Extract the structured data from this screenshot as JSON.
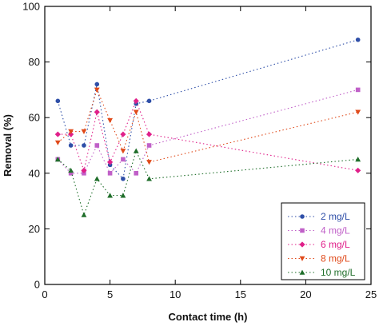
{
  "chart_data": {
    "type": "scatter",
    "title": "",
    "xlabel": "Contact time (h)",
    "ylabel": "Removal (%)",
    "xlim": [
      0,
      25
    ],
    "ylim": [
      0,
      100
    ],
    "xticks": [
      0,
      5,
      10,
      15,
      20,
      25
    ],
    "yticks": [
      0,
      20,
      40,
      60,
      80,
      100
    ],
    "grid": false,
    "line_style": "dotted",
    "legend_position": "bottom-right",
    "x": [
      1,
      2,
      3,
      4,
      5,
      6,
      7,
      8,
      24
    ],
    "series": [
      {
        "name": "2 mg/L",
        "marker": "circle",
        "color": "#2f4fa8",
        "values": [
          66,
          50,
          50,
          72,
          43,
          38,
          65,
          66,
          88
        ]
      },
      {
        "name": "4 mg/L",
        "marker": "square",
        "color": "#c060c8",
        "values": [
          45,
          40,
          40,
          50,
          40,
          45,
          40,
          50,
          70
        ]
      },
      {
        "name": "6 mg/L",
        "marker": "diamond",
        "color": "#e0208a",
        "values": [
          54,
          54,
          41,
          62,
          44,
          54,
          66,
          54,
          41
        ]
      },
      {
        "name": "8 mg/L",
        "marker": "triangle-down",
        "color": "#e04a1a",
        "values": [
          51,
          55,
          55,
          70,
          59,
          48,
          62,
          44,
          62
        ]
      },
      {
        "name": "10 mg/L",
        "marker": "triangle-up",
        "color": "#1f6e2a",
        "values": [
          45,
          41,
          25,
          38,
          32,
          32,
          48,
          38,
          45
        ]
      }
    ]
  }
}
